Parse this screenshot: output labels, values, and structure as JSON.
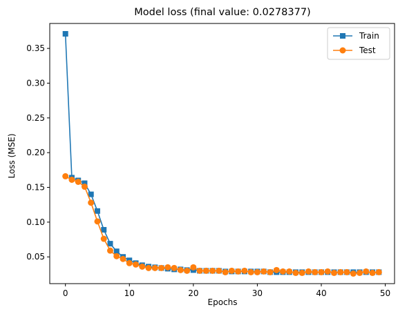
{
  "chart_data": {
    "type": "line",
    "title": "Model loss (final value: 0.0278377)",
    "xlabel": "Epochs",
    "ylabel": "Loss (MSE)",
    "xlim": [
      -2.45,
      51.45
    ],
    "ylim": [
      0.0115,
      0.3859
    ],
    "x_ticks": [
      0,
      10,
      20,
      30,
      40,
      50
    ],
    "x_tick_labels": [
      "0",
      "10",
      "20",
      "30",
      "40",
      "50"
    ],
    "y_ticks": [
      0.05,
      0.1,
      0.15,
      0.2,
      0.25,
      0.3,
      0.35
    ],
    "y_tick_labels": [
      "0.05",
      "0.10",
      "0.15",
      "0.20",
      "0.25",
      "0.30",
      "0.35"
    ],
    "grid": false,
    "legend_position": "top-right",
    "x": [
      0,
      1,
      2,
      3,
      4,
      5,
      6,
      7,
      8,
      9,
      10,
      11,
      12,
      13,
      14,
      15,
      16,
      17,
      18,
      19,
      20,
      21,
      22,
      23,
      24,
      25,
      26,
      27,
      28,
      29,
      30,
      31,
      32,
      33,
      34,
      35,
      36,
      37,
      38,
      39,
      40,
      41,
      42,
      43,
      44,
      45,
      46,
      47,
      48,
      49
    ],
    "series": [
      {
        "name": "Train",
        "color": "#1f77b4",
        "marker": "square",
        "values": [
          0.371,
          0.164,
          0.16,
          0.156,
          0.14,
          0.116,
          0.089,
          0.069,
          0.058,
          0.05,
          0.045,
          0.041,
          0.038,
          0.036,
          0.035,
          0.034,
          0.033,
          0.032,
          0.032,
          0.031,
          0.031,
          0.03,
          0.03,
          0.03,
          0.03,
          0.029,
          0.029,
          0.029,
          0.029,
          0.029,
          0.029,
          0.029,
          0.028,
          0.028,
          0.028,
          0.028,
          0.028,
          0.028,
          0.028,
          0.028,
          0.028,
          0.028,
          0.028,
          0.028,
          0.028,
          0.028,
          0.028,
          0.028,
          0.028,
          0.028
        ]
      },
      {
        "name": "Test",
        "color": "#ff7f0e",
        "marker": "circle",
        "values": [
          0.166,
          0.161,
          0.158,
          0.151,
          0.128,
          0.101,
          0.076,
          0.059,
          0.051,
          0.047,
          0.041,
          0.039,
          0.036,
          0.034,
          0.034,
          0.034,
          0.035,
          0.034,
          0.031,
          0.03,
          0.035,
          0.03,
          0.03,
          0.03,
          0.03,
          0.028,
          0.03,
          0.029,
          0.03,
          0.028,
          0.028,
          0.029,
          0.028,
          0.031,
          0.029,
          0.029,
          0.027,
          0.027,
          0.029,
          0.028,
          0.028,
          0.029,
          0.027,
          0.028,
          0.028,
          0.026,
          0.027,
          0.029,
          0.027,
          0.028
        ]
      }
    ]
  }
}
